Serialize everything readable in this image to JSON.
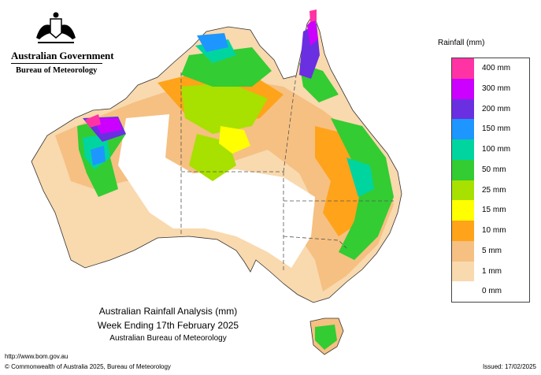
{
  "header": {
    "government": "Australian Government",
    "department": "Bureau of Meteorology"
  },
  "map": {
    "title_line1": "Australian Rainfall Analysis (mm)",
    "title_line2": "Week Ending 17th February 2025",
    "title_line3": "Australian Bureau of Meteorology",
    "region": "Australia"
  },
  "legend": {
    "title": "Rainfall (mm)",
    "items": [
      {
        "label": "400 mm",
        "color": "#ff33a3"
      },
      {
        "label": "300 mm",
        "color": "#cc00ff"
      },
      {
        "label": "200 mm",
        "color": "#6a2fe0"
      },
      {
        "label": "150 mm",
        "color": "#1e96ff"
      },
      {
        "label": "100 mm",
        "color": "#00d5a0"
      },
      {
        "label": "50 mm",
        "color": "#33cc33"
      },
      {
        "label": "25 mm",
        "color": "#a8e000"
      },
      {
        "label": "15 mm",
        "color": "#ffff00"
      },
      {
        "label": "10 mm",
        "color": "#ffa31a"
      },
      {
        "label": "5 mm",
        "color": "#f5c082"
      },
      {
        "label": "1 mm",
        "color": "#f9d9ae"
      },
      {
        "label": "0 mm",
        "color": "#ffffff"
      }
    ]
  },
  "footer": {
    "url": "http://www.bom.gov.au",
    "copyright": "© Commonwealth of Australia 2025, Bureau of Meteorology",
    "issued": "Issued: 17/02/2025"
  }
}
